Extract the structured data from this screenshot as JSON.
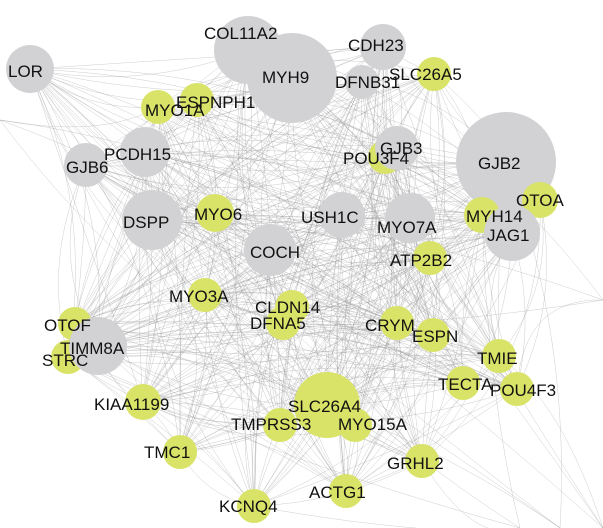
{
  "colors": {
    "background": "#ffffff",
    "gray_node": "#d2d2d4",
    "yellow_node": "#d9e367",
    "edge": "#9a9a9a",
    "label": "#111111"
  },
  "nodes": [
    {
      "id": "COL11A2",
      "label": "COL11A2",
      "color": "gray"
    },
    {
      "id": "CDH23",
      "label": "CDH23",
      "color": "gray"
    },
    {
      "id": "LOR",
      "label": "LOR",
      "color": "gray"
    },
    {
      "id": "MYH9",
      "label": "MYH9",
      "color": "gray"
    },
    {
      "id": "DFNB31",
      "label": "DFNB31",
      "color": "gray"
    },
    {
      "id": "SLC26A5",
      "label": "SLC26A5",
      "color": "yellow"
    },
    {
      "id": "MYO1A",
      "label": "MYO1A",
      "color": "yellow"
    },
    {
      "id": "ESPN_PH1",
      "label": "ESPNPH1",
      "color": "yellow"
    },
    {
      "id": "PCDH15",
      "label": "PCDH15",
      "color": "gray"
    },
    {
      "id": "GJB6",
      "label": "GJB6",
      "color": "gray"
    },
    {
      "id": "POU3F4",
      "label": "POU3F4",
      "color": "yellow"
    },
    {
      "id": "GJB3",
      "label": "GJB3",
      "color": "gray"
    },
    {
      "id": "GJB2",
      "label": "GJB2",
      "color": "gray"
    },
    {
      "id": "OTOA",
      "label": "OTOA",
      "color": "yellow"
    },
    {
      "id": "DSPP",
      "label": "DSPP",
      "color": "gray"
    },
    {
      "id": "MYO6",
      "label": "MYO6",
      "color": "yellow"
    },
    {
      "id": "USH1C",
      "label": "USH1C",
      "color": "gray"
    },
    {
      "id": "MYO7A",
      "label": "MYO7A",
      "color": "gray"
    },
    {
      "id": "MYH14",
      "label": "MYH14",
      "color": "yellow"
    },
    {
      "id": "JAG1",
      "label": "JAG1",
      "color": "gray"
    },
    {
      "id": "COCH",
      "label": "COCH",
      "color": "gray"
    },
    {
      "id": "ATP2B2",
      "label": "ATP2B2",
      "color": "yellow"
    },
    {
      "id": "MYO3A",
      "label": "MYO3A",
      "color": "yellow"
    },
    {
      "id": "CLDN14",
      "label": "CLDN14",
      "color": "yellow"
    },
    {
      "id": "DFNA5",
      "label": "DFNA5",
      "color": "yellow"
    },
    {
      "id": "CRYM",
      "label": "CRYM",
      "color": "yellow"
    },
    {
      "id": "ESPN",
      "label": "ESPN",
      "color": "yellow"
    },
    {
      "id": "OTOF",
      "label": "OTOF",
      "color": "yellow"
    },
    {
      "id": "STRC",
      "label": "STRC",
      "color": "yellow"
    },
    {
      "id": "TIMM8A",
      "label": "TIMM8A",
      "color": "gray"
    },
    {
      "id": "TMIE",
      "label": "TMIE",
      "color": "yellow"
    },
    {
      "id": "KIAA1199",
      "label": "KIAA1199",
      "color": "yellow"
    },
    {
      "id": "SLC26A4",
      "label": "SLC26A4",
      "color": "yellow"
    },
    {
      "id": "TECTA",
      "label": "TECTA",
      "color": "yellow"
    },
    {
      "id": "POU4F3",
      "label": "POU4F3",
      "color": "yellow"
    },
    {
      "id": "TMPRSS3",
      "label": "TMPRSS3",
      "color": "yellow"
    },
    {
      "id": "MYO15A",
      "label": "MYO15A",
      "color": "yellow"
    },
    {
      "id": "TMC1",
      "label": "TMC1",
      "color": "yellow"
    },
    {
      "id": "GRHL2",
      "label": "GRHL2",
      "color": "yellow"
    },
    {
      "id": "ACTG1",
      "label": "ACTG1",
      "color": "yellow"
    },
    {
      "id": "KCNQ4",
      "label": "KCNQ4",
      "color": "yellow"
    }
  ]
}
